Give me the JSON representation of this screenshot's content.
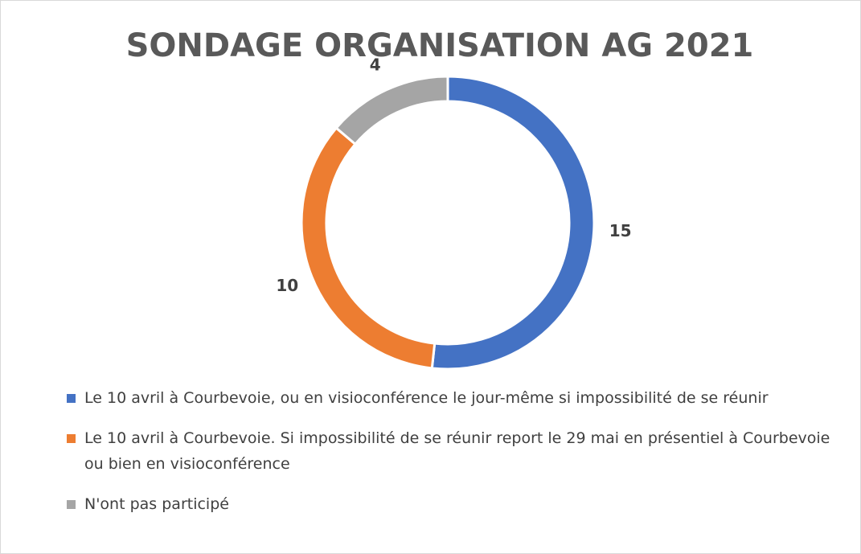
{
  "chart_data": {
    "type": "donut",
    "title": "SONDAGE ORGANISATION AG 2021",
    "categories": [
      "Le 10 avril à Courbevoie, ou en visioconférence le jour-même si impossibilité de se réunir",
      "Le 10 avril à Courbevoie. Si impossibilité de se réunir report le 29 mai en présentiel à Courbevoie ou bien en visioconférence",
      "N'ont pas participé"
    ],
    "values": [
      15,
      10,
      4
    ],
    "colors": [
      "#4472c4",
      "#ed7d31",
      "#a5a5a5"
    ],
    "legend": "bottom"
  }
}
